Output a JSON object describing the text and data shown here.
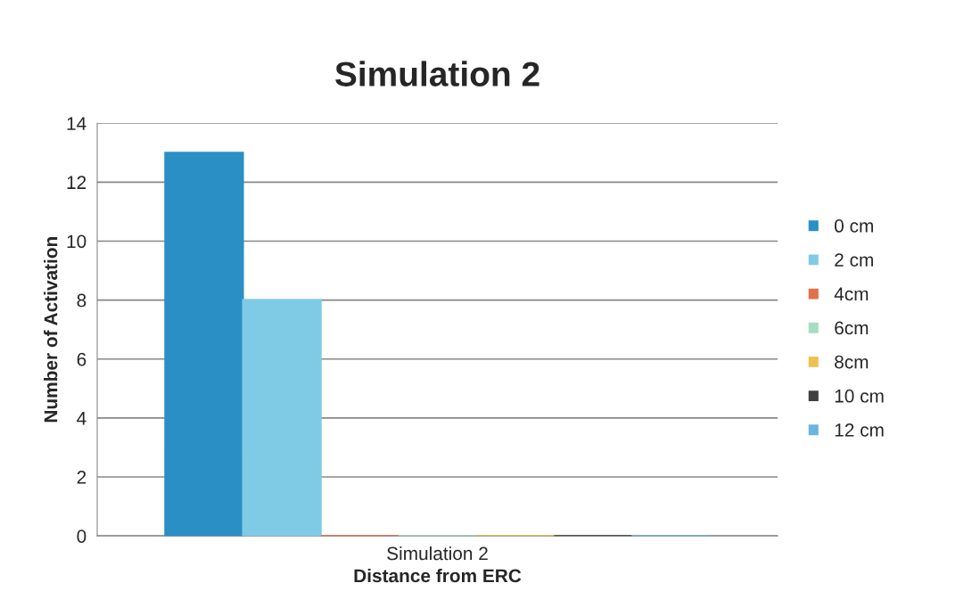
{
  "chart_data": {
    "type": "bar",
    "title": "Simulation 2",
    "xlabel": "Distance from ERC",
    "ylabel": "Number of Activation",
    "categories": [
      "Simulation 2"
    ],
    "series": [
      {
        "name": "0 cm",
        "color": "#2a8fc4",
        "values": [
          13
        ]
      },
      {
        "name": "2 cm",
        "color": "#7fcbe6",
        "values": [
          8
        ]
      },
      {
        "name": "4cm",
        "color": "#e0714a",
        "values": [
          0
        ]
      },
      {
        "name": "6cm",
        "color": "#a8dcc0",
        "values": [
          0
        ]
      },
      {
        "name": "8cm",
        "color": "#f0c050",
        "values": [
          0
        ]
      },
      {
        "name": "10 cm",
        "color": "#404040",
        "values": [
          0
        ]
      },
      {
        "name": "12 cm",
        "color": "#6ab4e0",
        "values": [
          0
        ]
      }
    ],
    "ylim": [
      0,
      14
    ],
    "yticks": [
      0,
      2,
      4,
      6,
      8,
      10,
      12,
      14
    ],
    "grid": "y",
    "legend": "right"
  }
}
